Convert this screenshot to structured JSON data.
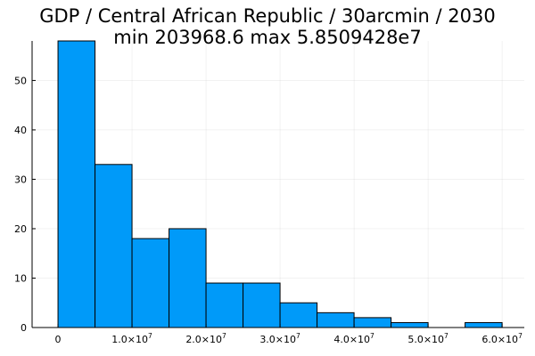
{
  "chart_data": {
    "type": "bar",
    "title_line1": "GDP / Central African Republic / 30arcmin / 2030",
    "title_line2": "min 203968.6  max 5.8509428e7",
    "xlabel": "",
    "ylabel": "",
    "bin_edges": [
      0,
      5000000,
      10000000,
      15000000,
      20000000,
      25000000,
      30000000,
      35000000,
      40000000,
      45000000,
      50000000,
      55000000,
      60000000
    ],
    "values": [
      58,
      33,
      18,
      20,
      9,
      9,
      5,
      3,
      2,
      1,
      0,
      1
    ],
    "xlim": [
      -3500000,
      63000000
    ],
    "ylim": [
      0,
      58
    ],
    "x_ticks": [
      {
        "value": 0,
        "base": "0",
        "exp": ""
      },
      {
        "value": 10000000,
        "base": "1.0×10",
        "exp": "7"
      },
      {
        "value": 20000000,
        "base": "2.0×10",
        "exp": "7"
      },
      {
        "value": 30000000,
        "base": "3.0×10",
        "exp": "7"
      },
      {
        "value": 40000000,
        "base": "4.0×10",
        "exp": "7"
      },
      {
        "value": 50000000,
        "base": "5.0×10",
        "exp": "7"
      },
      {
        "value": 60000000,
        "base": "6.0×10",
        "exp": "7"
      }
    ],
    "y_ticks": [
      0,
      10,
      20,
      30,
      40,
      50
    ],
    "bar_color": "#009af9",
    "grid": true,
    "legend": "none"
  }
}
